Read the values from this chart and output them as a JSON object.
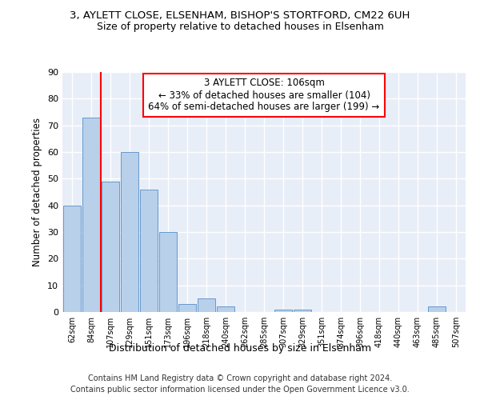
{
  "title1": "3, AYLETT CLOSE, ELSENHAM, BISHOP'S STORTFORD, CM22 6UH",
  "title2": "Size of property relative to detached houses in Elsenham",
  "xlabel": "Distribution of detached houses by size in Elsenham",
  "ylabel": "Number of detached properties",
  "categories": [
    "62sqm",
    "84sqm",
    "107sqm",
    "129sqm",
    "151sqm",
    "173sqm",
    "196sqm",
    "218sqm",
    "240sqm",
    "262sqm",
    "285sqm",
    "307sqm",
    "329sqm",
    "351sqm",
    "374sqm",
    "396sqm",
    "418sqm",
    "440sqm",
    "463sqm",
    "485sqm",
    "507sqm"
  ],
  "values": [
    40,
    73,
    49,
    60,
    46,
    30,
    3,
    5,
    2,
    0,
    0,
    1,
    1,
    0,
    0,
    0,
    0,
    0,
    0,
    2,
    0
  ],
  "bar_color": "#b8d0ea",
  "bar_edge_color": "#6699cc",
  "red_line_x": 2,
  "annotation_title": "3 AYLETT CLOSE: 106sqm",
  "annotation_line1": "← 33% of detached houses are smaller (104)",
  "annotation_line2": "64% of semi-detached houses are larger (199) →",
  "footer1": "Contains HM Land Registry data © Crown copyright and database right 2024.",
  "footer2": "Contains public sector information licensed under the Open Government Licence v3.0.",
  "bg_color": "#e8eef8",
  "ylim": [
    0,
    90
  ],
  "yticks": [
    0,
    10,
    20,
    30,
    40,
    50,
    60,
    70,
    80,
    90
  ]
}
